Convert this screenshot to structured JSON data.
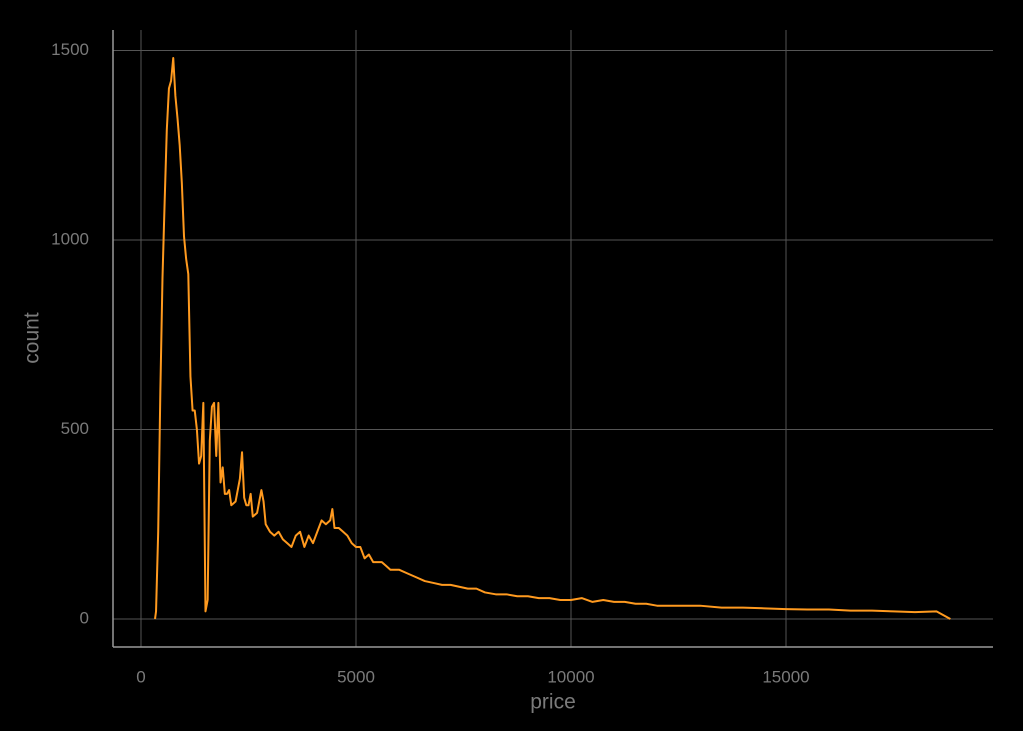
{
  "chart_data": {
    "type": "line",
    "x_label": "price",
    "y_label": "count",
    "color": "#ff9a1f",
    "grid": true,
    "xlim": [
      -651,
      19814
    ],
    "ylim": [
      -74,
      1554
    ],
    "xticks": [
      0,
      5000,
      10000,
      15000
    ],
    "yticks": [
      0,
      500,
      1000,
      1500
    ],
    "x": [
      326,
      350,
      400,
      450,
      500,
      550,
      600,
      650,
      700,
      750,
      800,
      850,
      900,
      950,
      1000,
      1050,
      1100,
      1150,
      1200,
      1250,
      1300,
      1350,
      1400,
      1450,
      1500,
      1550,
      1600,
      1650,
      1700,
      1750,
      1800,
      1850,
      1900,
      1950,
      2000,
      2050,
      2100,
      2200,
      2300,
      2350,
      2400,
      2450,
      2500,
      2550,
      2600,
      2700,
      2800,
      2850,
      2900,
      3000,
      3100,
      3200,
      3300,
      3400,
      3500,
      3600,
      3700,
      3800,
      3900,
      4000,
      4100,
      4200,
      4300,
      4400,
      4450,
      4500,
      4600,
      4700,
      4800,
      4900,
      5000,
      5100,
      5200,
      5300,
      5400,
      5500,
      5600,
      5700,
      5800,
      5900,
      6000,
      6200,
      6400,
      6600,
      6800,
      7000,
      7200,
      7400,
      7600,
      7800,
      8000,
      8250,
      8500,
      8750,
      9000,
      9250,
      9500,
      9750,
      10000,
      10250,
      10500,
      10750,
      11000,
      11250,
      11500,
      11750,
      12000,
      12500,
      13000,
      13500,
      14000,
      14500,
      15000,
      15500,
      16000,
      16500,
      17000,
      17500,
      18000,
      18500,
      18823
    ],
    "values": [
      0,
      20,
      230,
      600,
      900,
      1100,
      1290,
      1400,
      1420,
      1480,
      1380,
      1320,
      1250,
      1150,
      1010,
      950,
      910,
      640,
      550,
      550,
      500,
      410,
      430,
      570,
      20,
      50,
      470,
      560,
      570,
      430,
      570,
      360,
      400,
      330,
      330,
      340,
      300,
      310,
      370,
      440,
      320,
      300,
      300,
      330,
      270,
      280,
      340,
      310,
      250,
      230,
      220,
      230,
      210,
      200,
      190,
      220,
      230,
      190,
      220,
      200,
      230,
      260,
      250,
      260,
      290,
      240,
      240,
      230,
      220,
      200,
      190,
      190,
      160,
      170,
      150,
      150,
      150,
      140,
      130,
      130,
      130,
      120,
      110,
      100,
      95,
      90,
      90,
      85,
      80,
      80,
      70,
      65,
      65,
      60,
      60,
      55,
      55,
      50,
      50,
      55,
      45,
      50,
      45,
      45,
      40,
      40,
      35,
      35,
      35,
      30,
      30,
      28,
      26,
      25,
      25,
      22,
      22,
      20,
      18,
      20,
      0
    ]
  }
}
